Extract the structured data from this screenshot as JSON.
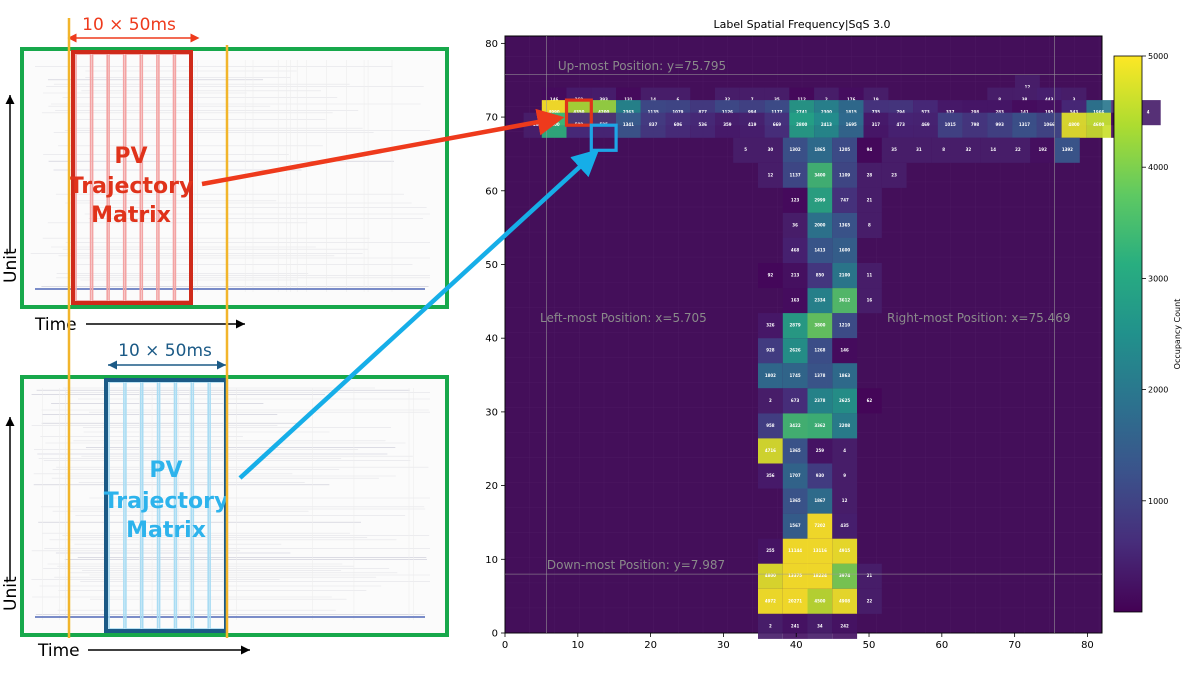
{
  "left": {
    "top_panel": {
      "window_label": "10 × 50ms",
      "matrix_label_lines": [
        "PV",
        "Trajectory",
        "Matrix"
      ],
      "y_axis_label": "Unit",
      "x_axis_label": "Time",
      "colors": {
        "frame": "#17a84b",
        "window": "#cf2a1a",
        "stripe": "#f3a3a3",
        "arrow": "#ee3a1c",
        "guide": "#f2b52b"
      }
    },
    "bottom_panel": {
      "window_label": "10 × 50ms",
      "matrix_label_lines": [
        "PV",
        "Trajectory",
        "Matrix"
      ],
      "y_axis_label": "Unit",
      "x_axis_label": "Time",
      "colors": {
        "frame": "#17a84b",
        "window": "#1b5a86",
        "stripe": "#a9dcf3",
        "arrow": "#16aee8",
        "text": "#2db3ec"
      }
    }
  },
  "chart_data": {
    "type": "heatmap",
    "title": "Label Spatial Frequency|SqS 3.0",
    "xlim": [
      0,
      82
    ],
    "ylim": [
      0,
      81
    ],
    "xticks": [
      0,
      10,
      20,
      30,
      40,
      50,
      60,
      70,
      80
    ],
    "yticks": [
      0,
      10,
      20,
      30,
      40,
      50,
      60,
      70,
      80
    ],
    "colorbar": {
      "label": "Occupancy Count",
      "min": 0,
      "max": 5000,
      "ticks": [
        1000,
        2000,
        3000,
        4000,
        5000
      ],
      "colormap": "viridis"
    },
    "background_color": "#440f5a",
    "bin_size": 3.4,
    "annotations": [
      {
        "text": "Up-most Position: y=75.795",
        "value": 75.795,
        "axis": "y"
      },
      {
        "text": "Down-most Position: y=7.987",
        "value": 7.987,
        "axis": "y"
      },
      {
        "text": "Left-most Position: x=5.705",
        "value": 5.705,
        "axis": "x"
      },
      {
        "text": "Right-most Position: x=75.469",
        "value": 75.469,
        "axis": "x"
      }
    ],
    "highlights": [
      {
        "x": 10.7,
        "y": 70.6,
        "color": "#e0331b"
      },
      {
        "x": 14.1,
        "y": 67.2,
        "color": "#1ea6e6"
      }
    ],
    "rows": [
      {
        "y": 74.0,
        "cells": [
          [
            72.3,
            12
          ]
        ]
      },
      {
        "y": 72.3,
        "cells": [
          [
            7.3,
            146
          ],
          [
            10.7,
            368
          ],
          [
            14.1,
            393
          ],
          [
            17.5,
            131
          ],
          [
            20.9,
            14
          ],
          [
            24.3,
            6
          ],
          [
            31.1,
            32
          ],
          [
            34.5,
            7
          ],
          [
            37.9,
            35
          ],
          [
            41.3,
            112
          ],
          [
            44.7,
            2
          ],
          [
            48.1,
            176
          ],
          [
            51.5,
            19
          ],
          [
            68.5,
            8
          ],
          [
            71.9,
            38
          ],
          [
            75.3,
            443
          ],
          [
            78.7,
            3
          ]
        ]
      },
      {
        "y": 70.6,
        "cells": [
          [
            7.3,
            4990
          ],
          [
            10.7,
            4350
          ],
          [
            14.1,
            4200
          ],
          [
            17.5,
            2363
          ],
          [
            20.9,
            1135
          ],
          [
            24.3,
            1079
          ],
          [
            27.7,
            877
          ],
          [
            31.1,
            1126
          ],
          [
            34.5,
            994
          ],
          [
            37.9,
            1177
          ],
          [
            41.3,
            2741
          ],
          [
            44.7,
            2300
          ],
          [
            48.1,
            1815
          ],
          [
            51.5,
            735
          ],
          [
            54.9,
            794
          ],
          [
            58.3,
            573
          ],
          [
            61.7,
            337
          ],
          [
            65.1,
            298
          ],
          [
            68.5,
            283
          ],
          [
            71.9,
            141
          ],
          [
            75.3,
            195
          ],
          [
            78.7,
            543
          ],
          [
            82.1,
            1966
          ],
          [
            85.5,
            492
          ],
          [
            88.9,
            4
          ]
        ]
      },
      {
        "y": 68.9,
        "cells": [
          [
            4.8,
            26
          ],
          [
            7.3,
            3200
          ],
          [
            10.7,
            588
          ],
          [
            14.1,
            525
          ],
          [
            17.5,
            1341
          ],
          [
            20.9,
            837
          ],
          [
            24.3,
            606
          ],
          [
            27.7,
            536
          ],
          [
            31.1,
            359
          ],
          [
            34.5,
            419
          ],
          [
            37.9,
            669
          ],
          [
            41.3,
            2800
          ],
          [
            44.7,
            2413
          ],
          [
            48.1,
            1695
          ],
          [
            51.5,
            317
          ],
          [
            54.9,
            473
          ],
          [
            58.3,
            469
          ],
          [
            61.7,
            1015
          ],
          [
            65.1,
            798
          ],
          [
            68.5,
            993
          ],
          [
            71.9,
            1317
          ],
          [
            75.3,
            1066
          ],
          [
            78.7,
            4800
          ],
          [
            82.1,
            4600
          ],
          [
            85.5,
            76
          ]
        ]
      },
      {
        "y": 65.5,
        "cells": [
          [
            33.6,
            5
          ],
          [
            37.0,
            30
          ],
          [
            40.4,
            1302
          ],
          [
            43.8,
            1865
          ],
          [
            47.2,
            1205
          ],
          [
            50.6,
            94
          ],
          [
            54.0,
            35
          ],
          [
            57.4,
            31
          ],
          [
            60.8,
            8
          ],
          [
            64.2,
            32
          ],
          [
            67.6,
            14
          ],
          [
            71.0,
            22
          ],
          [
            74.4,
            192
          ],
          [
            77.8,
            1392
          ]
        ]
      },
      {
        "y": 62.1,
        "cells": [
          [
            37.0,
            12
          ],
          [
            40.4,
            1137
          ],
          [
            43.8,
            3400
          ],
          [
            47.2,
            1109
          ],
          [
            50.6,
            28
          ],
          [
            54.0,
            23
          ]
        ]
      },
      {
        "y": 58.7,
        "cells": [
          [
            40.4,
            123
          ],
          [
            43.8,
            2999
          ],
          [
            47.2,
            747
          ],
          [
            50.6,
            21
          ]
        ]
      },
      {
        "y": 55.3,
        "cells": [
          [
            40.4,
            36
          ],
          [
            43.8,
            2000
          ],
          [
            47.2,
            1365
          ],
          [
            50.6,
            8
          ]
        ]
      },
      {
        "y": 51.9,
        "cells": [
          [
            40.4,
            468
          ],
          [
            43.8,
            1413
          ],
          [
            47.2,
            1600
          ]
        ]
      },
      {
        "y": 48.5,
        "cells": [
          [
            37.0,
            92
          ],
          [
            40.4,
            213
          ],
          [
            43.8,
            850
          ],
          [
            47.2,
            2100
          ],
          [
            50.6,
            11
          ]
        ]
      },
      {
        "y": 45.1,
        "cells": [
          [
            40.4,
            163
          ],
          [
            43.8,
            2334
          ],
          [
            47.2,
            3612
          ],
          [
            50.6,
            16
          ]
        ]
      },
      {
        "y": 41.7,
        "cells": [
          [
            37.0,
            326
          ],
          [
            40.4,
            2879
          ],
          [
            43.8,
            3800
          ],
          [
            47.2,
            1210
          ]
        ]
      },
      {
        "y": 38.3,
        "cells": [
          [
            37.0,
            928
          ],
          [
            40.4,
            2626
          ],
          [
            43.8,
            1268
          ],
          [
            47.2,
            146
          ]
        ]
      },
      {
        "y": 34.9,
        "cells": [
          [
            37.0,
            1802
          ],
          [
            40.4,
            1745
          ],
          [
            43.8,
            1378
          ],
          [
            47.2,
            1863
          ]
        ]
      },
      {
        "y": 31.5,
        "cells": [
          [
            37.0,
            2
          ],
          [
            40.4,
            673
          ],
          [
            43.8,
            2378
          ],
          [
            47.2,
            2625
          ],
          [
            50.6,
            62
          ]
        ]
      },
      {
        "y": 28.1,
        "cells": [
          [
            37.0,
            958
          ],
          [
            40.4,
            3422
          ],
          [
            43.8,
            3362
          ],
          [
            47.2,
            2208
          ]
        ]
      },
      {
        "y": 24.7,
        "cells": [
          [
            37.0,
            4716
          ],
          [
            40.4,
            1365
          ],
          [
            43.8,
            259
          ],
          [
            47.2,
            4
          ]
        ]
      },
      {
        "y": 21.3,
        "cells": [
          [
            37.0,
            356
          ],
          [
            40.4,
            1707
          ],
          [
            43.8,
            930
          ],
          [
            47.2,
            9
          ]
        ]
      },
      {
        "y": 17.9,
        "cells": [
          [
            40.4,
            1365
          ],
          [
            43.8,
            1867
          ],
          [
            47.2,
            12
          ]
        ]
      },
      {
        "y": 14.5,
        "cells": [
          [
            40.4,
            1567
          ],
          [
            43.8,
            7202
          ],
          [
            47.2,
            435
          ]
        ]
      },
      {
        "y": 11.1,
        "cells": [
          [
            37.0,
            255
          ],
          [
            40.4,
            11144
          ],
          [
            43.8,
            13116
          ],
          [
            47.2,
            4915
          ]
        ]
      },
      {
        "y": 7.7,
        "cells": [
          [
            37.0,
            4800
          ],
          [
            40.4,
            13375
          ],
          [
            43.8,
            18224
          ],
          [
            47.2,
            3974
          ],
          [
            50.6,
            21
          ]
        ]
      },
      {
        "y": 4.3,
        "cells": [
          [
            37.0,
            4972
          ],
          [
            40.4,
            20271
          ],
          [
            43.8,
            4500
          ],
          [
            47.2,
            4908
          ],
          [
            50.6,
            22
          ]
        ]
      },
      {
        "y": 0.9,
        "cells": [
          [
            37.0,
            2
          ],
          [
            40.4,
            241
          ],
          [
            43.8,
            34
          ],
          [
            47.2,
            242
          ]
        ]
      }
    ]
  }
}
